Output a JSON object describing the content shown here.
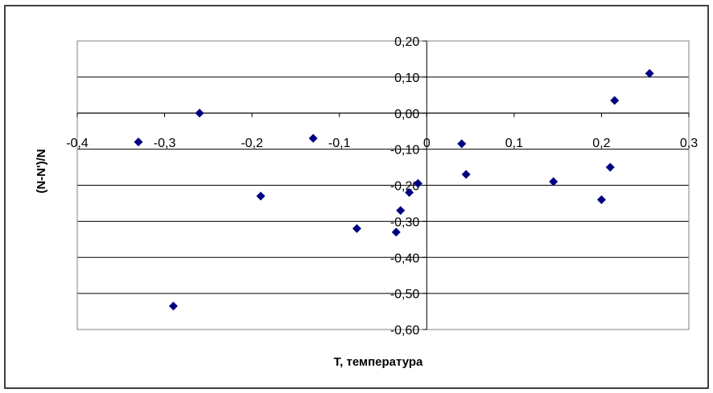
{
  "chart_data": {
    "type": "scatter",
    "title": "",
    "xlabel": "T, температура",
    "ylabel": "(N-N')/N",
    "xlim": [
      -0.4,
      0.3
    ],
    "ylim": [
      -0.6,
      0.2
    ],
    "x_ticks": [
      -0.4,
      -0.3,
      -0.2,
      -0.1,
      0,
      0.1,
      0.2,
      0.3
    ],
    "x_tick_labels": [
      "-0,4",
      "-0,3",
      "-0,2",
      "-0,1",
      "0",
      "0,1",
      "0,2",
      "0,3"
    ],
    "y_ticks": [
      0.2,
      0.1,
      0.0,
      -0.1,
      -0.2,
      -0.3,
      -0.4,
      -0.5,
      -0.6
    ],
    "y_tick_labels": [
      "0,20",
      "0,10",
      "0,00",
      "-0,10",
      "-0,20",
      "-0,30",
      "-0,40",
      "-0,50",
      "-0,60"
    ],
    "grid": "horizontal",
    "legend": "none",
    "marker": "diamond",
    "marker_color": "#000080",
    "points": [
      {
        "x": -0.33,
        "y": -0.08
      },
      {
        "x": -0.26,
        "y": 0.0
      },
      {
        "x": -0.29,
        "y": -0.535
      },
      {
        "x": -0.19,
        "y": -0.23
      },
      {
        "x": -0.13,
        "y": -0.07
      },
      {
        "x": -0.08,
        "y": -0.32
      },
      {
        "x": -0.035,
        "y": -0.33
      },
      {
        "x": -0.03,
        "y": -0.27
      },
      {
        "x": -0.02,
        "y": -0.22
      },
      {
        "x": -0.01,
        "y": -0.195
      },
      {
        "x": 0.04,
        "y": -0.085
      },
      {
        "x": 0.045,
        "y": -0.17
      },
      {
        "x": 0.145,
        "y": -0.19
      },
      {
        "x": 0.2,
        "y": -0.24
      },
      {
        "x": 0.21,
        "y": -0.15
      },
      {
        "x": 0.215,
        "y": 0.035
      },
      {
        "x": 0.255,
        "y": 0.11
      }
    ]
  }
}
